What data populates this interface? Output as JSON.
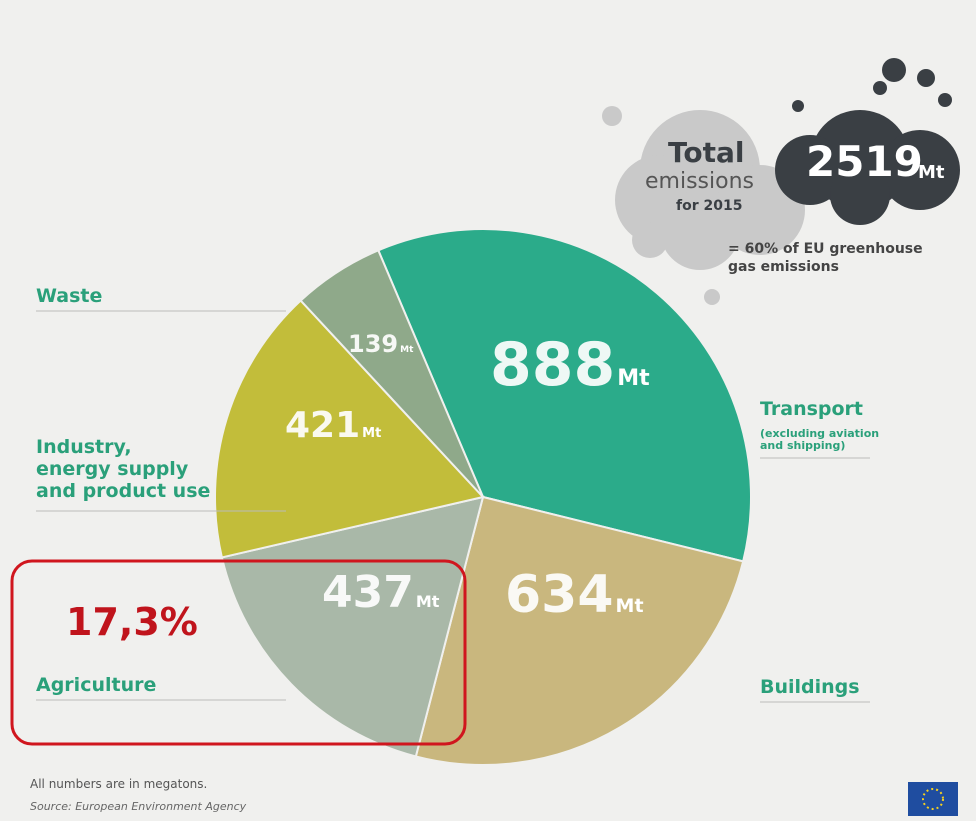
{
  "chart_data": {
    "type": "pie",
    "categories": [
      "Transport",
      "Buildings",
      "Agriculture",
      "Industry, energy supply and product use",
      "Waste"
    ],
    "values": [
      888,
      634,
      437,
      421,
      139
    ],
    "colors": [
      "#2bab8a",
      "#c9b77e",
      "#a9b8a8",
      "#c2bd3a",
      "#8fa98a"
    ],
    "unit": "Mt",
    "transport_note": "(excluding aviation and shipping)",
    "highlight": "17,3%",
    "total": {
      "line1": "Total",
      "line2": "emissions",
      "line3": "for 2015",
      "value": 2519,
      "note": "= 60% of EU greenhouse gas emissions"
    },
    "footnote": "All numbers are in megatons.",
    "source": "Source: European Environment Agency"
  }
}
